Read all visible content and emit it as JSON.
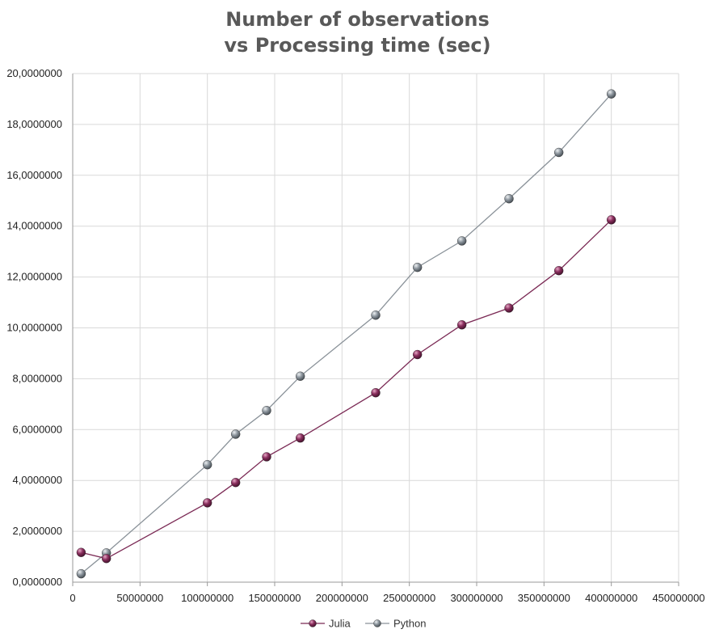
{
  "chart_data": {
    "type": "scatter",
    "title_lines": [
      "Number of observations",
      "vs Processing time (sec)"
    ],
    "xlabel": "",
    "ylabel": "",
    "xlim": [
      0,
      450000000
    ],
    "ylim": [
      0,
      20
    ],
    "x_ticks": [
      0,
      50000000,
      100000000,
      150000000,
      200000000,
      250000000,
      300000000,
      350000000,
      400000000,
      450000000
    ],
    "x_tick_labels": [
      "0",
      "50000000",
      "100000000",
      "150000000",
      "200000000",
      "250000000",
      "300000000",
      "350000000",
      "400000000",
      "450000000"
    ],
    "y_ticks": [
      0,
      2,
      4,
      6,
      8,
      10,
      12,
      14,
      16,
      18,
      20
    ],
    "y_tick_labels": [
      "0,0000000",
      "2,0000000",
      "4,0000000",
      "6,0000000",
      "8,0000000",
      "10,0000000",
      "12,0000000",
      "14,0000000",
      "16,0000000",
      "18,0000000",
      "20,0000000"
    ],
    "grid": true,
    "legend_position": "bottom",
    "series": [
      {
        "name": "Julia",
        "color": "#7b2a55",
        "x": [
          6250000,
          25000000,
          100000000,
          121000000,
          144000000,
          169000000,
          225000000,
          256000000,
          289000000,
          324000000,
          361000000,
          400000000
        ],
        "y": [
          1.17,
          0.93,
          3.12,
          3.92,
          4.93,
          5.67,
          7.45,
          8.95,
          10.12,
          10.78,
          12.25,
          14.25
        ]
      },
      {
        "name": "Python",
        "color": "#8a9299",
        "x": [
          6250000,
          25000000,
          100000000,
          121000000,
          144000000,
          169000000,
          225000000,
          256000000,
          289000000,
          324000000,
          361000000,
          400000000
        ],
        "y": [
          0.33,
          1.15,
          4.62,
          5.82,
          6.75,
          8.1,
          10.5,
          12.38,
          13.42,
          15.08,
          16.9,
          19.2
        ]
      }
    ]
  }
}
